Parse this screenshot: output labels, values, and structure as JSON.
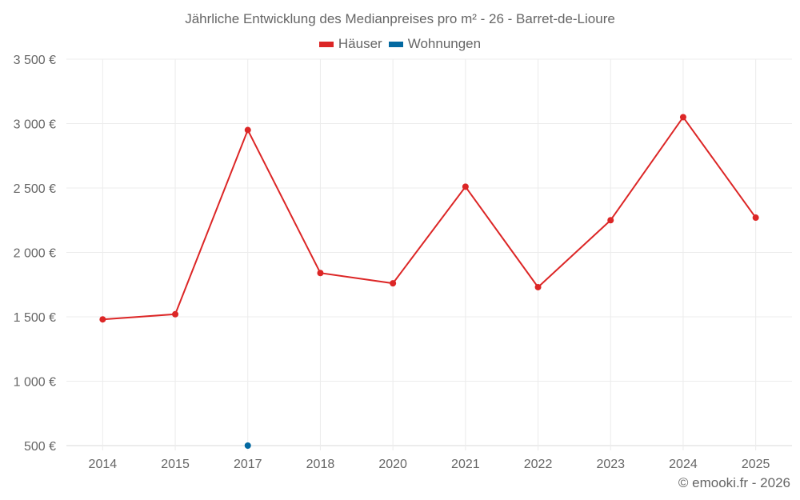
{
  "header": {
    "title": "Jährliche Entwicklung des Medianpreises pro m² - 26 - Barret-de-Lioure"
  },
  "legend": [
    {
      "label": "Häuser",
      "color": "#dc2626"
    },
    {
      "label": "Wohnungen",
      "color": "#0369a1"
    }
  ],
  "footer": {
    "copyright": "© emooki.fr - 2026"
  },
  "chart_data": {
    "type": "line",
    "title": "Jährliche Entwicklung des Medianpreises pro m² - 26 - Barret-de-Lioure",
    "xlabel": "",
    "ylabel": "",
    "categories": [
      "2014",
      "2015",
      "2017",
      "2018",
      "2020",
      "2021",
      "2022",
      "2023",
      "2024",
      "2025"
    ],
    "series": [
      {
        "name": "Häuser",
        "color": "#dc2626",
        "values": [
          1480,
          1520,
          2950,
          1840,
          1760,
          2510,
          1730,
          2250,
          3050,
          2270
        ]
      },
      {
        "name": "Wohnungen",
        "color": "#0369a1",
        "values": [
          null,
          null,
          500,
          null,
          null,
          null,
          null,
          null,
          null,
          null
        ]
      }
    ],
    "yticks": [
      "500 €",
      "1 000 €",
      "1 500 €",
      "2 000 €",
      "2 500 €",
      "3 000 €",
      "3 500 €"
    ],
    "ylim": [
      500,
      3500
    ],
    "grid": true,
    "legend_position": "top"
  }
}
